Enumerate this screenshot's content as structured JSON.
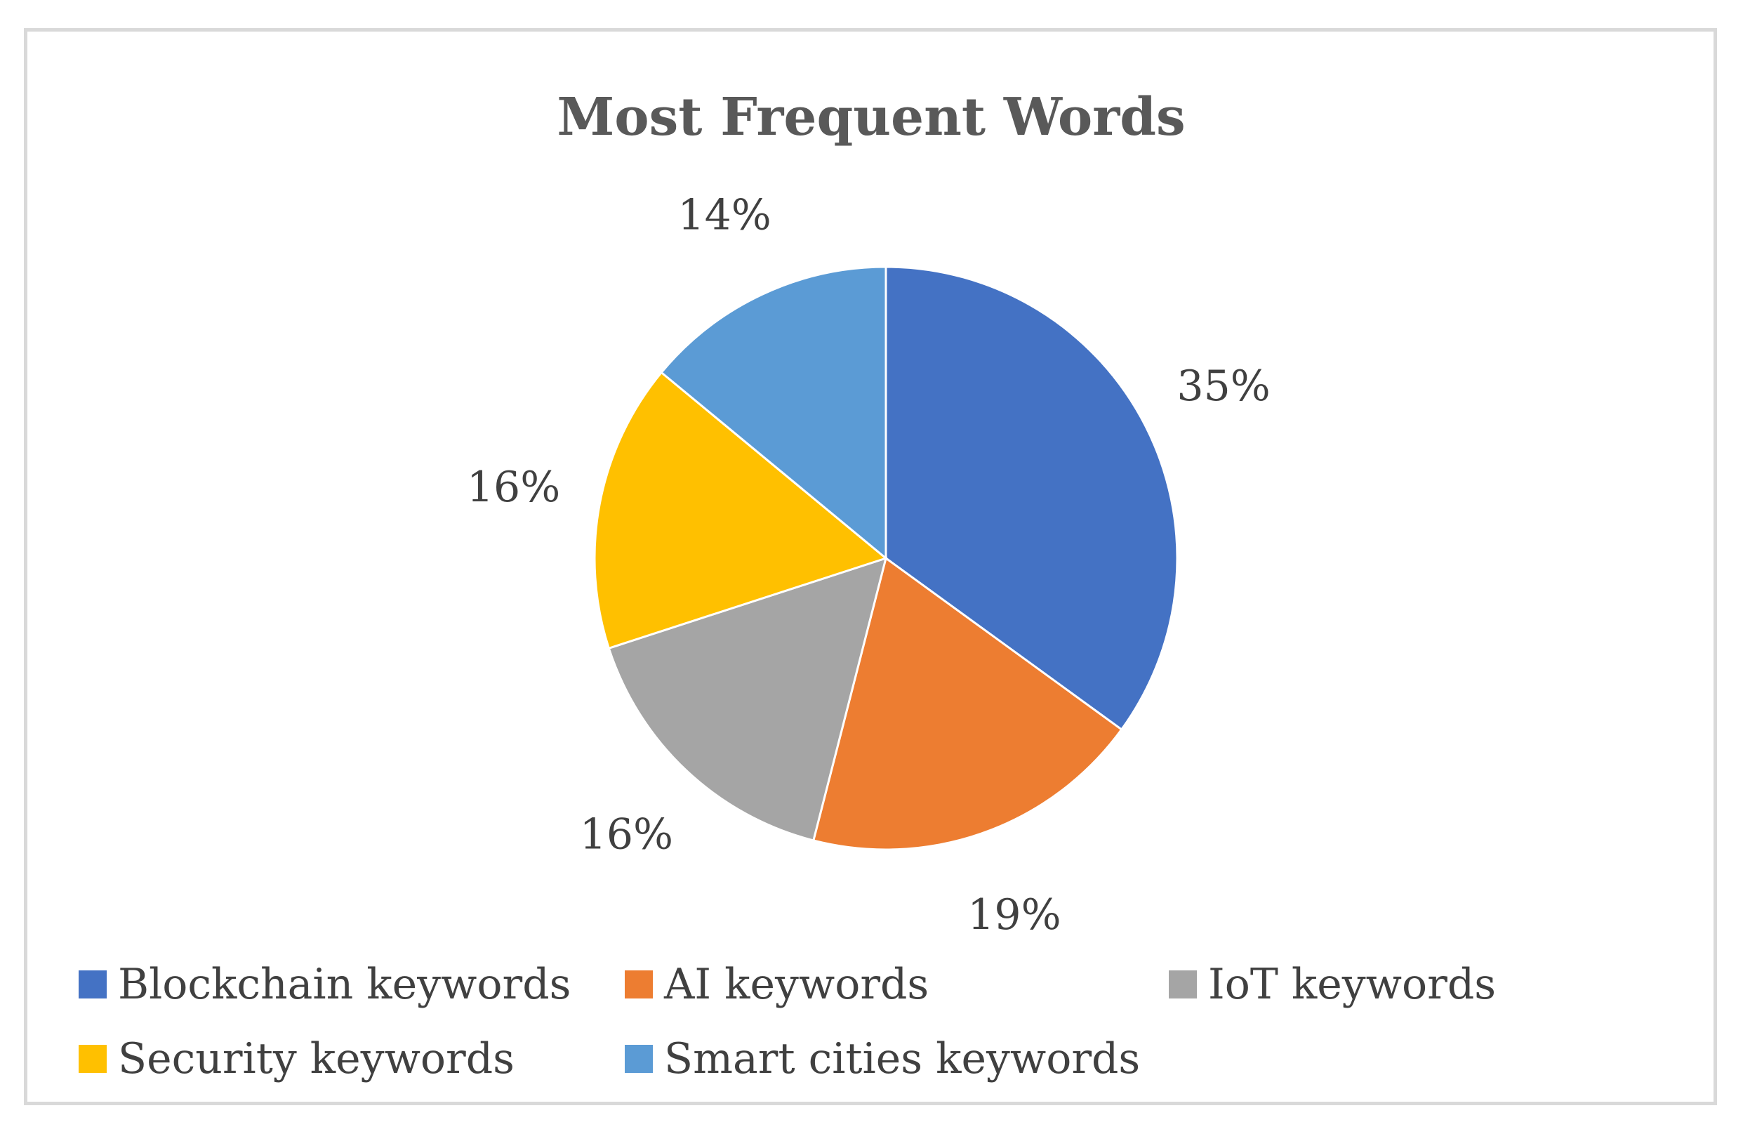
{
  "chart_data": {
    "type": "pie",
    "title": "Most Frequent Words",
    "categories": [
      "Blockchain keywords",
      "AI keywords",
      "IoT keywords",
      "Security keywords",
      "Smart cities keywords"
    ],
    "values": [
      35,
      19,
      16,
      16,
      14
    ],
    "data_labels": [
      "35%",
      "19%",
      "16%",
      "16%",
      "14%"
    ],
    "colors": [
      "#4472c4",
      "#ed7d31",
      "#a5a5a5",
      "#ffc000",
      "#5b9bd5"
    ],
    "legend": {
      "position": "bottom",
      "entries": [
        "Blockchain keywords",
        "AI keywords",
        "IoT keywords",
        "Security keywords",
        "Smart cities keywords"
      ]
    }
  }
}
